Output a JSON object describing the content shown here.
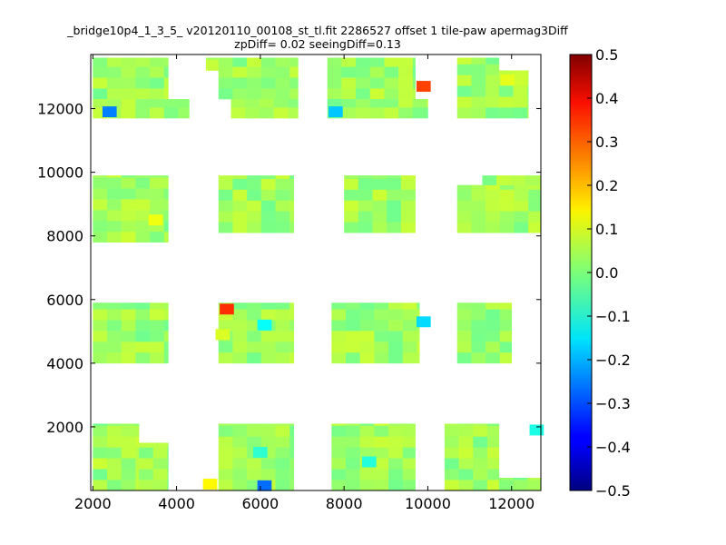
{
  "chart_data": {
    "type": "heatmap",
    "title_line1": "_bridge10p4_1_3_5_ v20120110_00108_st_tl.fit 2286527 offset 1 tile-paw apermag3Diff",
    "title_line2": "zpDiff= 0.02 seeingDiff=0.13",
    "xlim": [
      1950,
      12700
    ],
    "ylim": [
      0,
      13700
    ],
    "x_ticks": [
      2000,
      4000,
      6000,
      8000,
      10000,
      12000
    ],
    "y_ticks": [
      2000,
      4000,
      6000,
      8000,
      10000,
      12000
    ],
    "x_tick_labels": [
      "2000",
      "4000",
      "6000",
      "8000",
      "10000",
      "12000"
    ],
    "y_tick_labels": [
      "2000",
      "4000",
      "6000",
      "8000",
      "10000",
      "12000"
    ],
    "colorbar": {
      "colormap": "jet",
      "vmin": -0.5,
      "vmax": 0.5,
      "ticks": [
        0.5,
        0.4,
        0.3,
        0.2,
        0.1,
        0.0,
        -0.1,
        -0.2,
        -0.3,
        -0.4,
        -0.5
      ],
      "tick_labels": [
        "0.5",
        "0.4",
        "0.3",
        "0.2",
        "0.1",
        "0.0",
        "−0.1",
        "−0.2",
        "−0.3",
        "−0.4",
        "−0.5"
      ]
    },
    "cell_size": 340,
    "base_value": 0.03,
    "regions": [
      {
        "x0": 2000,
        "x1": 3800,
        "y0": 12300,
        "y1": 13600
      },
      {
        "x0": 2000,
        "x1": 4300,
        "y0": 11700,
        "y1": 12300
      },
      {
        "x0": 4700,
        "x1": 5100,
        "y0": 13200,
        "y1": 13600
      },
      {
        "x0": 5000,
        "x1": 6900,
        "y0": 12300,
        "y1": 13600
      },
      {
        "x0": 5300,
        "x1": 6900,
        "y0": 11700,
        "y1": 12300
      },
      {
        "x0": 7600,
        "x1": 9700,
        "y0": 12300,
        "y1": 13600
      },
      {
        "x0": 7600,
        "x1": 10000,
        "y0": 11700,
        "y1": 12300
      },
      {
        "x0": 10700,
        "x1": 11700,
        "y0": 11700,
        "y1": 13600
      },
      {
        "x0": 11700,
        "x1": 12400,
        "y0": 11700,
        "y1": 13200
      },
      {
        "x0": 2000,
        "x1": 3800,
        "y0": 7800,
        "y1": 9900
      },
      {
        "x0": 5000,
        "x1": 6800,
        "y0": 8100,
        "y1": 9900
      },
      {
        "x0": 8000,
        "x1": 9700,
        "y0": 8100,
        "y1": 9900
      },
      {
        "x0": 10700,
        "x1": 12700,
        "y0": 8100,
        "y1": 9600
      },
      {
        "x0": 11300,
        "x1": 12700,
        "y0": 9600,
        "y1": 9900
      },
      {
        "x0": 2000,
        "x1": 3800,
        "y0": 4000,
        "y1": 5900
      },
      {
        "x0": 5000,
        "x1": 6800,
        "y0": 4000,
        "y1": 5900
      },
      {
        "x0": 7700,
        "x1": 9800,
        "y0": 4000,
        "y1": 5900
      },
      {
        "x0": 10700,
        "x1": 12000,
        "y0": 4000,
        "y1": 5900
      },
      {
        "x0": 2000,
        "x1": 3100,
        "y0": 0,
        "y1": 2100
      },
      {
        "x0": 3100,
        "x1": 3800,
        "y0": 0,
        "y1": 1500
      },
      {
        "x0": 5000,
        "x1": 6800,
        "y0": 0,
        "y1": 2100
      },
      {
        "x0": 7700,
        "x1": 9700,
        "y0": 0,
        "y1": 2100
      },
      {
        "x0": 10400,
        "x1": 11700,
        "y0": 0,
        "y1": 2100
      },
      {
        "x0": 11700,
        "x1": 12700,
        "y0": 0,
        "y1": 400
      }
    ],
    "special_cells": [
      {
        "x": 2400,
        "y": 11900,
        "value": -0.25
      },
      {
        "x": 9900,
        "y": 12700,
        "value": 0.31
      },
      {
        "x": 7800,
        "y": 11900,
        "value": -0.18
      },
      {
        "x": 5200,
        "y": 5700,
        "value": 0.33
      },
      {
        "x": 6100,
        "y": 5200,
        "value": -0.12
      },
      {
        "x": 9900,
        "y": 5300,
        "value": -0.16
      },
      {
        "x": 12600,
        "y": 1900,
        "value": -0.1
      },
      {
        "x": 4800,
        "y": 200,
        "value": 0.13
      },
      {
        "x": 6100,
        "y": 150,
        "value": -0.27
      },
      {
        "x": 6000,
        "y": 1200,
        "value": -0.08
      },
      {
        "x": 8600,
        "y": 900,
        "value": -0.09
      },
      {
        "x": 11900,
        "y": 12900,
        "value": 0.1
      },
      {
        "x": 3500,
        "y": 8500,
        "value": 0.11
      },
      {
        "x": 5100,
        "y": 4900,
        "value": 0.09
      }
    ]
  }
}
